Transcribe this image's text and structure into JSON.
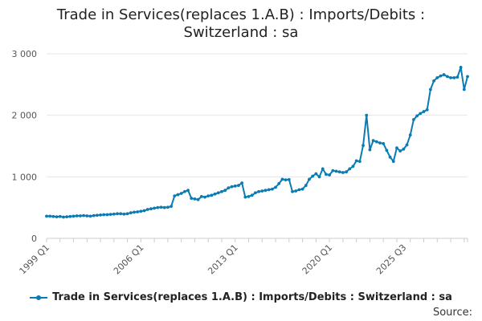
{
  "title_line1": "Trade in Services(replaces 1.A.B) : Imports/Debits :",
  "title_line2": "Switzerland : sa",
  "source_label": "Source:",
  "colors": {
    "series": "#0b7bb4",
    "grid": "#e6e6e6",
    "axis": "#cccccc"
  },
  "chart_data": {
    "type": "line",
    "title": "Trade in Services(replaces 1.A.B) : Imports/Debits : Switzerland : sa",
    "xlabel": "",
    "ylabel": "",
    "start_period": "1999 Q1",
    "end_period": "2025 Q3",
    "x_tick_labels": [
      "1999 Q1",
      "2006 Q1",
      "2013 Q1",
      "2020 Q1",
      "2025 Q3"
    ],
    "y_tick_labels": [
      "0",
      "1 000",
      "2 000",
      "3 000"
    ],
    "ylim": [
      0,
      3000
    ],
    "grid": "horizontal",
    "legend_position": "bottom",
    "series": [
      {
        "name": "Trade in Services(replaces 1.A.B) : Imports/Debits : Switzerland : sa",
        "values": [
          360,
          360,
          355,
          350,
          355,
          345,
          350,
          355,
          360,
          365,
          365,
          370,
          365,
          360,
          370,
          375,
          380,
          385,
          385,
          390,
          395,
          400,
          400,
          395,
          400,
          415,
          425,
          430,
          440,
          450,
          470,
          480,
          490,
          500,
          505,
          500,
          505,
          520,
          690,
          710,
          730,
          760,
          780,
          650,
          640,
          630,
          680,
          670,
          690,
          700,
          720,
          740,
          760,
          780,
          820,
          840,
          850,
          860,
          900,
          670,
          680,
          700,
          740,
          760,
          770,
          780,
          790,
          800,
          830,
          890,
          960,
          950,
          955,
          760,
          770,
          790,
          800,
          860,
          960,
          1010,
          1050,
          1000,
          1130,
          1040,
          1030,
          1100,
          1090,
          1080,
          1070,
          1080,
          1130,
          1170,
          1260,
          1250,
          1510,
          2000,
          1440,
          1590,
          1570,
          1550,
          1540,
          1430,
          1320,
          1250,
          1470,
          1420,
          1450,
          1520,
          1680,
          1930,
          1990,
          2030,
          2060,
          2090,
          2420,
          2560,
          2610,
          2640,
          2660,
          2630,
          2610,
          2610,
          2620,
          2780,
          2420,
          2630
        ]
      }
    ]
  }
}
